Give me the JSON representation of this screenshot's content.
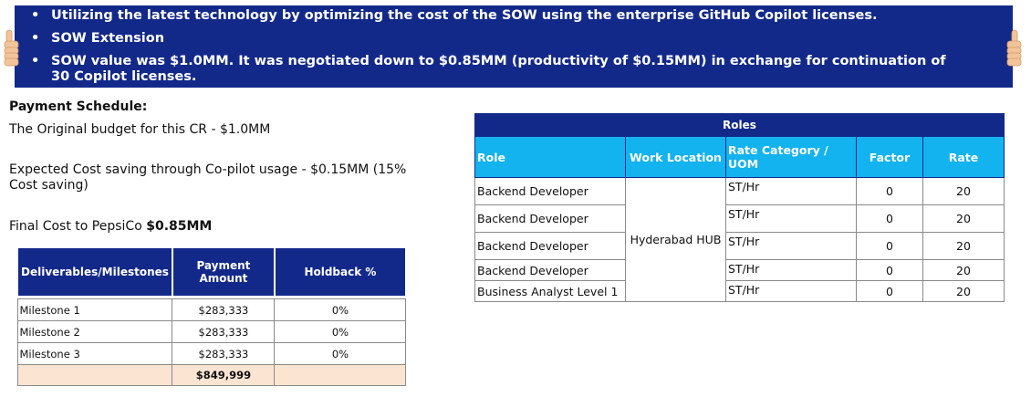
{
  "banner": {
    "bullets": [
      "Utilizing the latest technology by optimizing the cost of the SOW using the enterprise GitHub Copilot licenses.",
      "SOW Extension",
      "SOW value was $1.0MM. It was negotiated down to $0.85MM (productivity of $0.15MM) in exchange for continuation of 30 Copilot licenses."
    ]
  },
  "payment": {
    "heading": "Payment Schedule:",
    "original_budget": "The Original budget for this CR - $1.0MM",
    "expected_saving": "Expected Cost saving through Co-pilot usage - $0.15MM (15% Cost saving)",
    "final_cost_prefix": "Final Cost to PepsiCo ",
    "final_cost_value": "$0.85MM"
  },
  "milestones": {
    "headers": [
      "Deliverables/Milestones",
      "Payment Amount",
      "Holdback %"
    ],
    "rows": [
      [
        "Milestone 1",
        "$283,333",
        "0%"
      ],
      [
        "Milestone 2",
        "$283,333",
        "0%"
      ],
      [
        "Milestone 3",
        "$283,333",
        "0%"
      ]
    ],
    "total": "$849,999"
  },
  "roles": {
    "title": "Roles",
    "headers": [
      "Role",
      "Work Location",
      "Rate Category / UOM",
      "Factor",
      "Rate"
    ],
    "location": "Hyderabad HUB",
    "rows": [
      [
        "Backend Developer",
        "ST/Hr",
        "0",
        "20"
      ],
      [
        "Backend Developer",
        "ST/Hr",
        "0",
        "20"
      ],
      [
        "Backend Developer",
        "ST/Hr",
        "0",
        "20"
      ],
      [
        "Backend Developer",
        "ST/Hr",
        "0",
        "20"
      ],
      [
        "Business Analyst Level 1",
        "ST/Hr",
        "0",
        "20"
      ]
    ]
  },
  "colors": {
    "banner_bg": "#13298a",
    "roles_header_bg": "#12b3ee",
    "total_row_bg": "#fbe4d2"
  },
  "icons": [
    "thumbs-up-icon",
    "thumbs-up-icon"
  ]
}
